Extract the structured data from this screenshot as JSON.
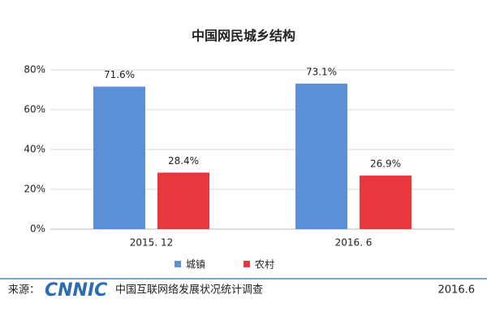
{
  "chart_data": {
    "type": "bar",
    "title": "中国网民城乡结构",
    "categories": [
      "2015. 12",
      "2016. 6"
    ],
    "series": [
      {
        "name": "城镇",
        "color": "#5b8fd6",
        "values": [
          71.6,
          73.1
        ],
        "value_labels": [
          "71.6%",
          "73.1%"
        ]
      },
      {
        "name": "农村",
        "color": "#e8383d",
        "values": [
          28.4,
          26.9
        ],
        "value_labels": [
          "28.4%",
          "26.9%"
        ]
      }
    ],
    "ylim": [
      0,
      80
    ],
    "yticks": [
      {
        "value": 0,
        "label": "0%"
      },
      {
        "value": 20,
        "label": "20%"
      },
      {
        "value": 40,
        "label": "40%"
      },
      {
        "value": 60,
        "label": "60%"
      },
      {
        "value": 80,
        "label": "80%"
      }
    ],
    "grid": true,
    "legend": "bottom",
    "footer": {
      "source_label": "来源：",
      "logo": "CNNIC",
      "source": "中国互联网络发展状况统计调查",
      "date": "2016.6"
    }
  }
}
